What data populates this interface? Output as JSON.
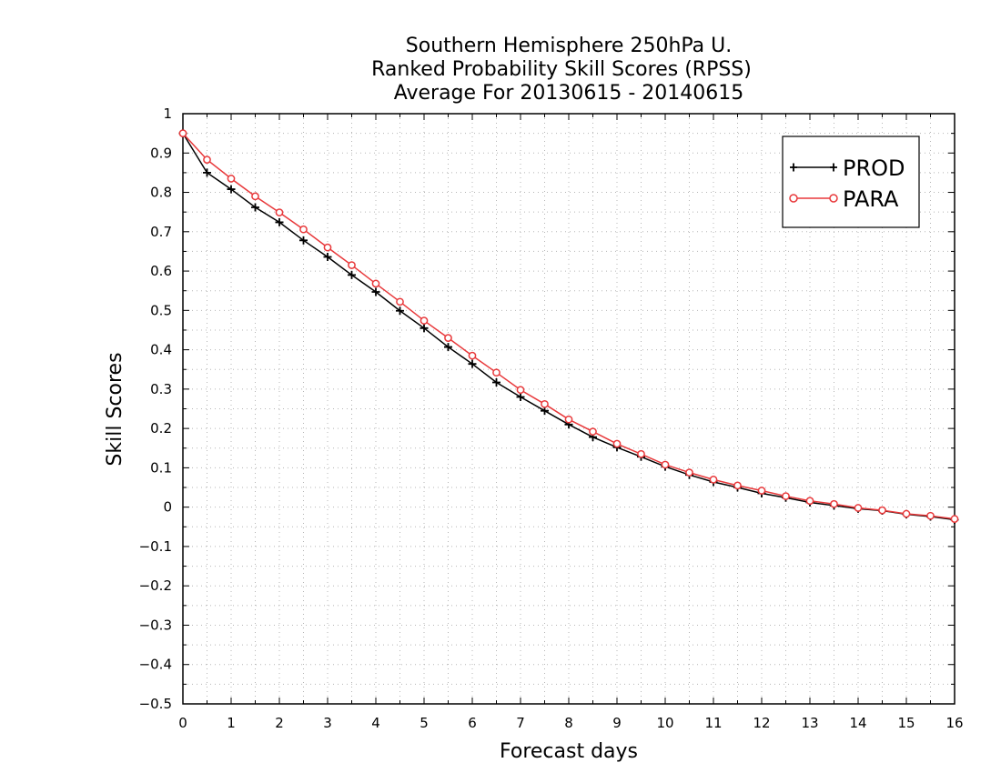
{
  "chart_data": {
    "type": "line",
    "title_lines": [
      "Southern Hemisphere 250hPa U.",
      "Ranked Probability Skill Scores (RPSS)",
      "Average For 20130615 - 20140615"
    ],
    "xlabel": "Forecast days",
    "ylabel": "Skill Scores",
    "xlim": [
      0,
      16
    ],
    "ylim": [
      -0.5,
      1
    ],
    "x_ticks": [
      "0",
      "1",
      "2",
      "3",
      "4",
      "5",
      "6",
      "7",
      "8",
      "9",
      "10",
      "11",
      "12",
      "13",
      "14",
      "15",
      "16"
    ],
    "y_ticks": [
      "1",
      "0.9",
      "0.8",
      "0.7",
      "0.6",
      "0.5",
      "0.4",
      "0.3",
      "0.2",
      "0.1",
      "0",
      "−0.1",
      "−0.2",
      "−0.3",
      "−0.4",
      "−0.5"
    ],
    "grid": true,
    "legend_position": "top-right",
    "x": [
      0,
      0.5,
      1,
      1.5,
      2,
      2.5,
      3,
      3.5,
      4,
      4.5,
      5,
      5.5,
      6,
      6.5,
      7,
      7.5,
      8,
      8.5,
      9,
      9.5,
      10,
      10.5,
      11,
      11.5,
      12,
      12.5,
      13,
      13.5,
      14,
      14.5,
      15,
      15.5,
      16
    ],
    "series": [
      {
        "name": "PROD",
        "color": "#000000",
        "marker": "plus",
        "values": [
          0.95,
          0.85,
          0.808,
          0.762,
          0.724,
          0.678,
          0.636,
          0.59,
          0.547,
          0.499,
          0.455,
          0.407,
          0.364,
          0.317,
          0.28,
          0.245,
          0.21,
          0.178,
          0.152,
          0.128,
          0.103,
          0.082,
          0.064,
          0.05,
          0.035,
          0.024,
          0.012,
          0.004,
          -0.004,
          -0.009,
          -0.018,
          -0.024,
          -0.032
        ]
      },
      {
        "name": "PARA",
        "color": "#e8393b",
        "marker": "circle",
        "values": [
          0.95,
          0.883,
          0.835,
          0.79,
          0.749,
          0.706,
          0.66,
          0.615,
          0.568,
          0.522,
          0.474,
          0.43,
          0.385,
          0.342,
          0.298,
          0.262,
          0.223,
          0.192,
          0.161,
          0.135,
          0.108,
          0.088,
          0.07,
          0.055,
          0.042,
          0.028,
          0.016,
          0.008,
          -0.002,
          -0.008,
          -0.017,
          -0.022,
          -0.03
        ]
      }
    ]
  }
}
